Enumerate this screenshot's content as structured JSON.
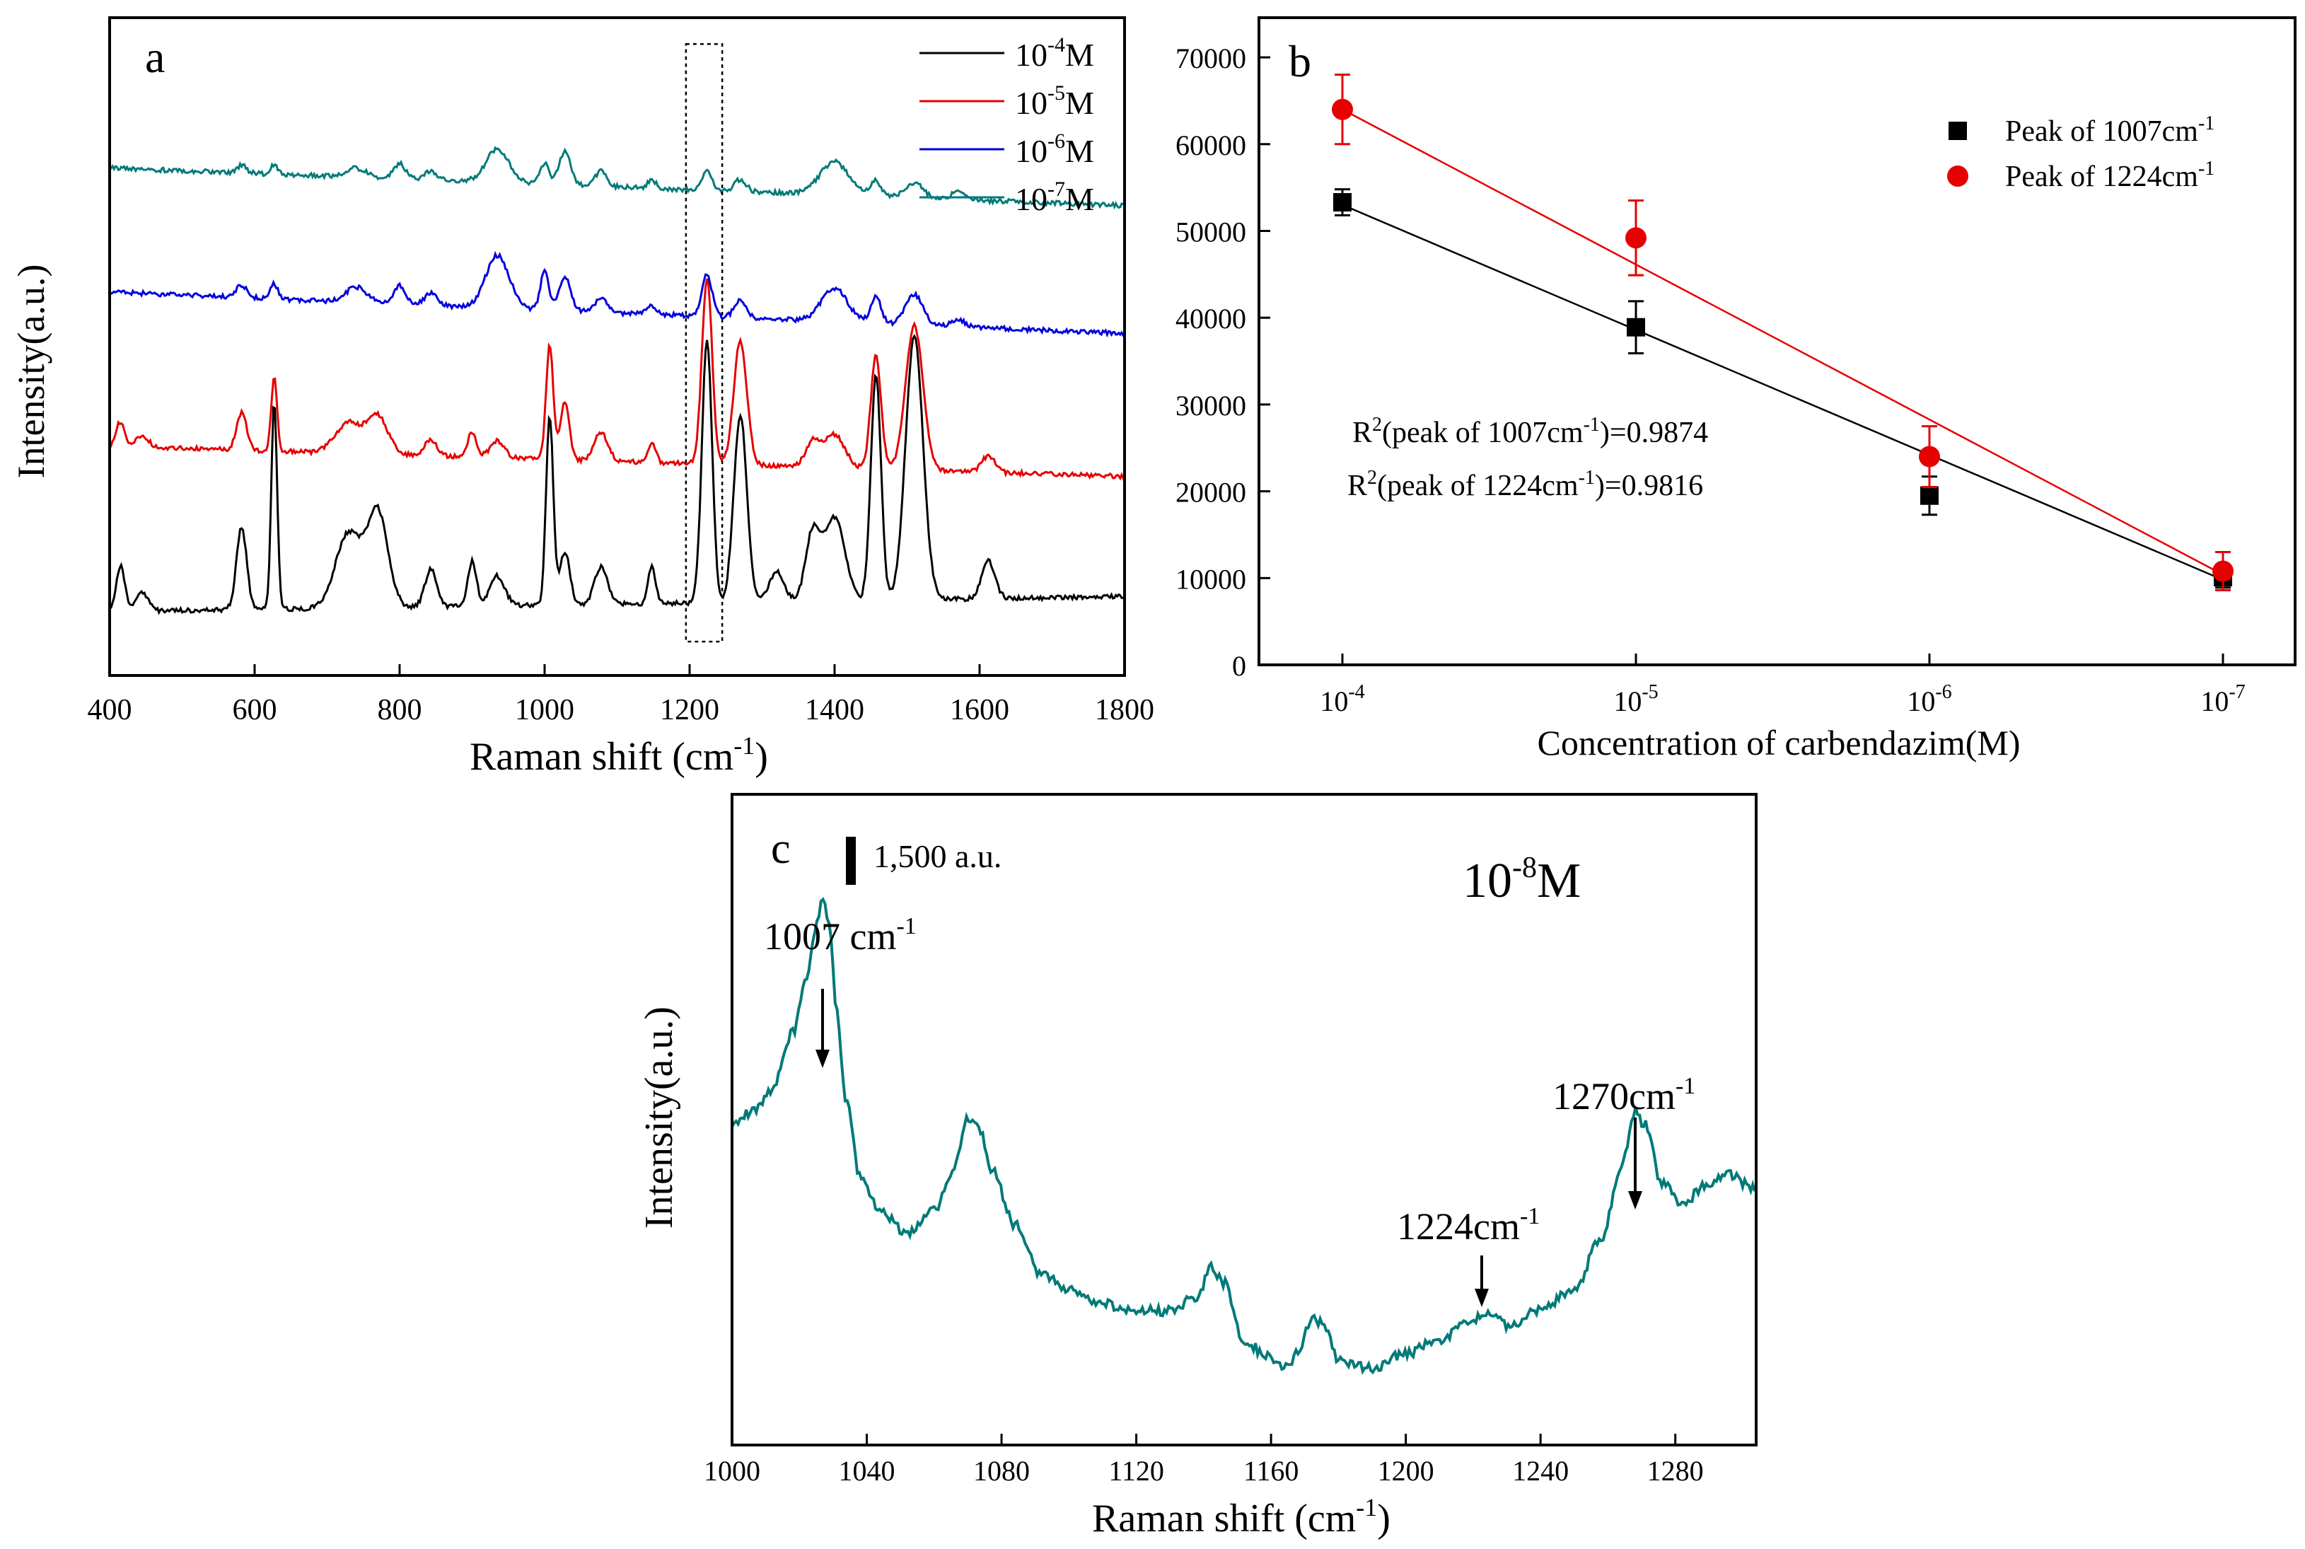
{
  "chart_data": [
    {
      "panel": "a",
      "type": "line",
      "panel_label": "a",
      "xlabel_main": "Raman shift (cm",
      "xlabel_sup": "-1",
      "xlabel_end": ")",
      "ylabel": "Intensity(a.u.)",
      "xlim": [
        400,
        1800
      ],
      "xticks": [
        "400",
        "600",
        "800",
        "1000",
        "1200",
        "1400",
        "1600",
        "1800"
      ],
      "highlight_box_x": [
        1195,
        1245
      ],
      "legend_position": "top-right",
      "series": [
        {
          "name": "10-4M",
          "label_base": "10",
          "label_exp": "-4",
          "label_unit": "M",
          "color": "#000000",
          "offset": 0.15,
          "baseline": [
            0.02,
            0.06
          ],
          "scale": 1.0,
          "peaks": [
            [
              415,
              0.12,
              6
            ],
            [
              445,
              0.05,
              8
            ],
            [
              582,
              0.22,
              7
            ],
            [
              627,
              0.55,
              4
            ],
            [
              730,
              0.2,
              18
            ],
            [
              770,
              0.25,
              14
            ],
            [
              843,
              0.1,
              8
            ],
            [
              900,
              0.12,
              6
            ],
            [
              935,
              0.08,
              10
            ],
            [
              1007,
              0.5,
              5
            ],
            [
              1028,
              0.14,
              7
            ],
            [
              1078,
              0.1,
              9
            ],
            [
              1148,
              0.1,
              5
            ],
            [
              1224,
              0.7,
              7
            ],
            [
              1270,
              0.5,
              9
            ],
            [
              1320,
              0.08,
              10
            ],
            [
              1370,
              0.18,
              10
            ],
            [
              1400,
              0.22,
              14
            ],
            [
              1457,
              0.6,
              7
            ],
            [
              1510,
              0.7,
              12
            ],
            [
              1612,
              0.1,
              9
            ]
          ]
        },
        {
          "name": "10-5M",
          "label_base": "10",
          "label_exp": "-5",
          "label_unit": "M",
          "color": "#e60000",
          "offset": 0.55,
          "baseline": [
            0.06,
            -0.02
          ],
          "scale": 0.55,
          "peaks": [
            [
              415,
              0.12,
              6
            ],
            [
              445,
              0.06,
              8
            ],
            [
              582,
              0.18,
              7
            ],
            [
              627,
              0.35,
              4
            ],
            [
              730,
              0.15,
              18
            ],
            [
              770,
              0.18,
              14
            ],
            [
              843,
              0.08,
              8
            ],
            [
              900,
              0.12,
              6
            ],
            [
              935,
              0.08,
              10
            ],
            [
              1007,
              0.55,
              5
            ],
            [
              1028,
              0.28,
              6
            ],
            [
              1078,
              0.14,
              9
            ],
            [
              1148,
              0.1,
              5
            ],
            [
              1224,
              0.9,
              7
            ],
            [
              1270,
              0.6,
              9
            ],
            [
              1370,
              0.12,
              10
            ],
            [
              1400,
              0.16,
              14
            ],
            [
              1457,
              0.55,
              7
            ],
            [
              1510,
              0.7,
              12
            ],
            [
              1612,
              0.08,
              9
            ]
          ]
        },
        {
          "name": "10-6M",
          "label_base": "10",
          "label_exp": "-6",
          "label_unit": "M",
          "color": "#0000dd",
          "offset": 0.94,
          "baseline": [
            0.08,
            -0.03
          ],
          "scale": 0.4,
          "peaks": [
            [
              582,
              0.08,
              7
            ],
            [
              627,
              0.1,
              5
            ],
            [
              740,
              0.1,
              14
            ],
            [
              800,
              0.12,
              8
            ],
            [
              843,
              0.08,
              8
            ],
            [
              935,
              0.35,
              16
            ],
            [
              1000,
              0.25,
              6
            ],
            [
              1028,
              0.22,
              8
            ],
            [
              1078,
              0.1,
              8
            ],
            [
              1148,
              0.06,
              6
            ],
            [
              1224,
              0.28,
              7
            ],
            [
              1270,
              0.12,
              8
            ],
            [
              1400,
              0.22,
              18
            ],
            [
              1457,
              0.18,
              7
            ],
            [
              1510,
              0.2,
              12
            ],
            [
              1570,
              0.05,
              9
            ]
          ]
        },
        {
          "name": "10-7M",
          "label_base": "10",
          "label_exp": "-7",
          "label_unit": "M",
          "color": "#007a78",
          "offset": 1.28,
          "baseline": [
            0.07,
            -0.03
          ],
          "scale": 0.4,
          "peaks": [
            [
              582,
              0.05,
              7
            ],
            [
              627,
              0.06,
              5
            ],
            [
              740,
              0.06,
              14
            ],
            [
              800,
              0.1,
              8
            ],
            [
              843,
              0.06,
              8
            ],
            [
              935,
              0.22,
              16
            ],
            [
              1000,
              0.14,
              6
            ],
            [
              1028,
              0.22,
              8
            ],
            [
              1078,
              0.1,
              8
            ],
            [
              1148,
              0.05,
              6
            ],
            [
              1224,
              0.12,
              7
            ],
            [
              1270,
              0.08,
              8
            ],
            [
              1400,
              0.22,
              20
            ],
            [
              1457,
              0.1,
              7
            ],
            [
              1510,
              0.1,
              12
            ],
            [
              1570,
              0.05,
              9
            ]
          ]
        }
      ]
    },
    {
      "panel": "b",
      "type": "scatter",
      "panel_label": "b",
      "xlabel": "Concentration of carbendazim(M)",
      "ylim": [
        0,
        70000
      ],
      "yticks": [
        "0",
        "10000",
        "20000",
        "30000",
        "40000",
        "50000",
        "60000",
        "70000"
      ],
      "categories": [
        {
          "base": "10",
          "exp": "-4"
        },
        {
          "base": "10",
          "exp": "-5"
        },
        {
          "base": "10",
          "exp": "-6"
        },
        {
          "base": "10",
          "exp": "-7"
        }
      ],
      "legend_position": "top-right",
      "series": [
        {
          "name": "Peak of 1007cm-1",
          "label_text": "Peak of 1007cm",
          "label_exp": "-1",
          "color": "#000000",
          "marker": "square",
          "values": [
            53300,
            38900,
            19500,
            10100
          ],
          "errors": [
            1500,
            3000,
            2200,
            1200
          ],
          "fit_start": 53000,
          "fit_end": 9800
        },
        {
          "name": "Peak of 1224cm-1",
          "label_text": "Peak of 1224cm",
          "label_exp": "-1",
          "color": "#e60000",
          "marker": "circle",
          "values": [
            64000,
            49200,
            24000,
            10800
          ],
          "errors": [
            4000,
            4300,
            3500,
            2200
          ],
          "fit_start": 64000,
          "fit_end": 10400
        }
      ],
      "annotations": [
        {
          "pre": "R",
          "sup1": "2",
          "mid": "(peak of 1007cm",
          "sup2": "-1",
          "post": ")=0.9874"
        },
        {
          "pre": "R",
          "sup1": "2",
          "mid": "(peak of 1224cm",
          "sup2": "-1",
          "post": ")=0.9816"
        }
      ]
    },
    {
      "panel": "c",
      "type": "line",
      "panel_label": "c",
      "xlabel_main": "Raman shift (cm",
      "xlabel_sup": "-1",
      "xlabel_end": ")",
      "ylabel": "Intensity(a.u.)",
      "xlim": [
        1000,
        1304
      ],
      "xticks": [
        "1000",
        "1040",
        "1080",
        "1120",
        "1160",
        "1200",
        "1240",
        "1280"
      ],
      "scale_bar_label": "1,500 a.u.",
      "concentration": {
        "base": "10",
        "exp": "-8",
        "unit": "M"
      },
      "color": "#007a78",
      "trace": [
        [
          1000,
          0.42
        ],
        [
          1006,
          0.44
        ],
        [
          1012,
          0.47
        ],
        [
          1018,
          0.55
        ],
        [
          1022,
          0.62
        ],
        [
          1025,
          0.7
        ],
        [
          1027,
          0.74
        ],
        [
          1029,
          0.7
        ],
        [
          1031,
          0.58
        ],
        [
          1034,
          0.45
        ],
        [
          1038,
          0.35
        ],
        [
          1044,
          0.3
        ],
        [
          1052,
          0.27
        ],
        [
          1060,
          0.3
        ],
        [
          1066,
          0.36
        ],
        [
          1070,
          0.43
        ],
        [
          1073,
          0.42
        ],
        [
          1077,
          0.36
        ],
        [
          1084,
          0.28
        ],
        [
          1092,
          0.21
        ],
        [
          1100,
          0.19
        ],
        [
          1110,
          0.17
        ],
        [
          1120,
          0.16
        ],
        [
          1130,
          0.16
        ],
        [
          1138,
          0.18
        ],
        [
          1142,
          0.22
        ],
        [
          1146,
          0.2
        ],
        [
          1152,
          0.12
        ],
        [
          1158,
          0.1
        ],
        [
          1164,
          0.08
        ],
        [
          1168,
          0.1
        ],
        [
          1172,
          0.15
        ],
        [
          1176,
          0.14
        ],
        [
          1180,
          0.09
        ],
        [
          1190,
          0.08
        ],
        [
          1200,
          0.1
        ],
        [
          1210,
          0.12
        ],
        [
          1218,
          0.14
        ],
        [
          1224,
          0.16
        ],
        [
          1230,
          0.14
        ],
        [
          1240,
          0.16
        ],
        [
          1250,
          0.19
        ],
        [
          1258,
          0.26
        ],
        [
          1264,
          0.36
        ],
        [
          1268,
          0.44
        ],
        [
          1271,
          0.42
        ],
        [
          1276,
          0.34
        ],
        [
          1282,
          0.31
        ],
        [
          1290,
          0.34
        ],
        [
          1296,
          0.35
        ],
        [
          1304,
          0.33
        ]
      ],
      "annotations": [
        {
          "label": "1007 cm",
          "sup": "-1",
          "x": 1027
        },
        {
          "label": "1224cm",
          "sup": "-1",
          "x": 1224
        },
        {
          "label": "1270cm",
          "sup": "-1",
          "x": 1269
        }
      ]
    }
  ]
}
